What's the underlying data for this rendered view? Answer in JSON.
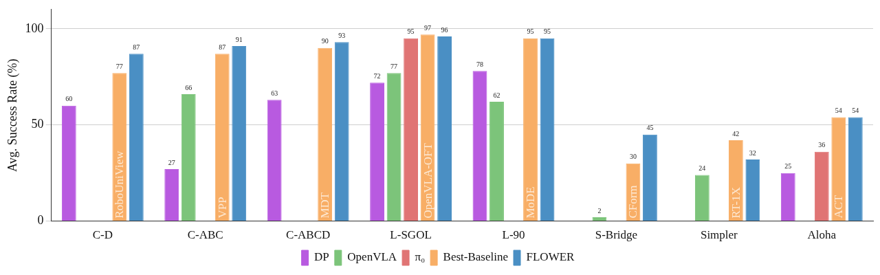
{
  "chart_data": {
    "type": "bar",
    "ylabel": "Avg. Success Rate (%)",
    "categories": [
      "C-D",
      "C-ABC",
      "C-ABCD",
      "L-SGOL",
      "L-90",
      "S-Bridge",
      "Simpler",
      "Aloha"
    ],
    "series": [
      {
        "name": "DP",
        "color": "#b85ae0",
        "values": [
          60,
          27,
          63,
          72,
          78,
          null,
          null,
          25
        ]
      },
      {
        "name": "OpenVLA",
        "color": "#7cc47a",
        "values": [
          null,
          66,
          null,
          77,
          62,
          2,
          24,
          null
        ]
      },
      {
        "name": "π₀",
        "color": "#e07474",
        "values": [
          null,
          null,
          null,
          95,
          null,
          null,
          null,
          36
        ]
      },
      {
        "name": "Best-Baseline",
        "color": "#f8ae66",
        "values": [
          77,
          87,
          90,
          97,
          95,
          30,
          42,
          54
        ]
      },
      {
        "name": "FLOWER",
        "color": "#4a8fc4",
        "values": [
          87,
          91,
          93,
          96,
          95,
          45,
          32,
          54
        ]
      }
    ],
    "ylim": [
      0,
      110
    ],
    "yticks": [
      0,
      50,
      100
    ],
    "grid": "y",
    "legend": "bottom",
    "data_labels": true,
    "annotations": [
      "RoboUniView",
      "VPP",
      "MDT",
      "OpenVLA-OFT",
      "MoDE",
      "CForm",
      "RT-1X",
      "ACT"
    ]
  }
}
